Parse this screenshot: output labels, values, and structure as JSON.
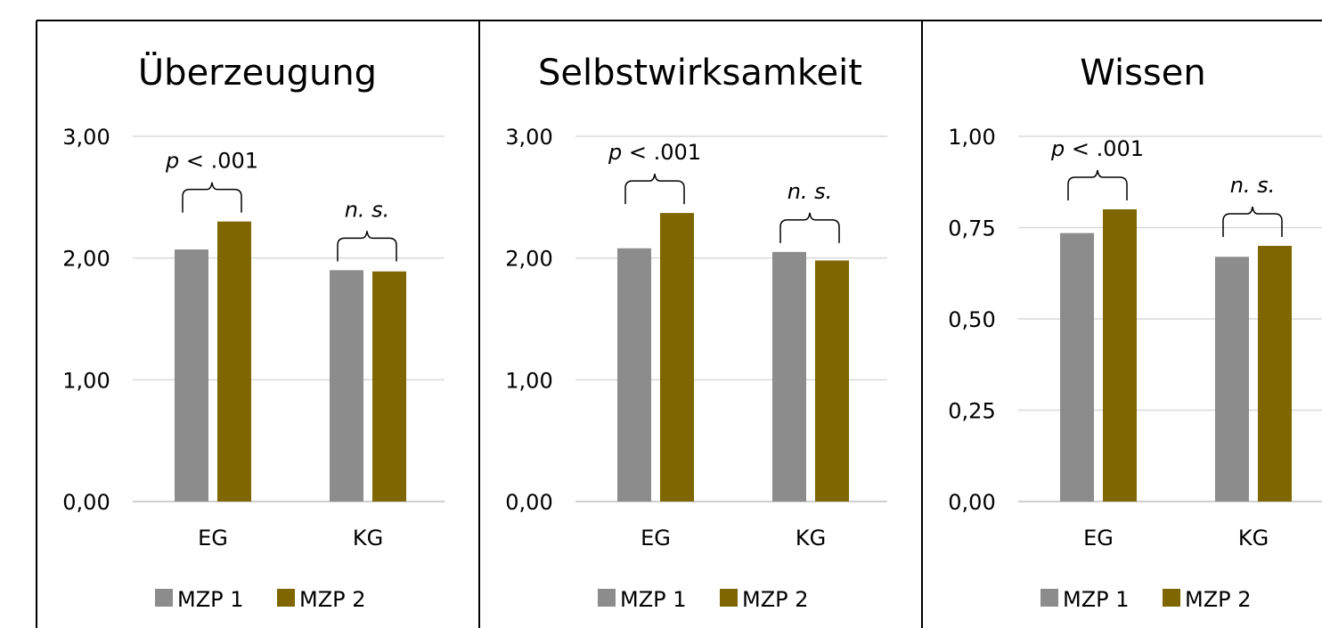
{
  "chart_data": [
    {
      "type": "bar",
      "title": "Überzeugung",
      "categories": [
        "EG",
        "KG"
      ],
      "series": [
        {
          "name": "MZP 1",
          "values": [
            2.07,
            1.9
          ]
        },
        {
          "name": "MZP 2",
          "values": [
            2.3,
            1.89
          ]
        }
      ],
      "ylim": [
        0,
        3
      ],
      "yticks": [
        "0,00",
        "1,00",
        "2,00",
        "3,00"
      ],
      "annotations": [
        {
          "category": "EG",
          "italic": "p",
          "text": " < .001"
        },
        {
          "category": "KG",
          "italic": "n. s.",
          "text": ""
        }
      ],
      "legend": "bottom",
      "grid": true
    },
    {
      "type": "bar",
      "title": "Selbstwirksamkeit",
      "categories": [
        "EG",
        "KG"
      ],
      "series": [
        {
          "name": "MZP 1",
          "values": [
            2.08,
            2.05
          ]
        },
        {
          "name": "MZP 2",
          "values": [
            2.37,
            1.98
          ]
        }
      ],
      "ylim": [
        0,
        3
      ],
      "yticks": [
        "0,00",
        "1,00",
        "2,00",
        "3,00"
      ],
      "annotations": [
        {
          "category": "EG",
          "italic": "p",
          "text": " < .001"
        },
        {
          "category": "KG",
          "italic": "n. s.",
          "text": ""
        }
      ],
      "legend": "bottom",
      "grid": true
    },
    {
      "type": "bar",
      "title": "Wissen",
      "categories": [
        "EG",
        "KG"
      ],
      "series": [
        {
          "name": "MZP 1",
          "values": [
            0.735,
            0.67
          ]
        },
        {
          "name": "MZP 2",
          "values": [
            0.8,
            0.7
          ]
        }
      ],
      "ylim": [
        0,
        1
      ],
      "yticks": [
        "0,00",
        "0,25",
        "0,50",
        "0,75",
        "1,00"
      ],
      "annotations": [
        {
          "category": "EG",
          "italic": "p",
          "text": " < .001"
        },
        {
          "category": "KG",
          "italic": "n. s.",
          "text": ""
        }
      ],
      "legend": "bottom",
      "grid": true
    }
  ],
  "colors": {
    "mzp1": "#8c8c8c",
    "mzp2": "#7f6600",
    "gridline": "#d9d9d9",
    "frame": "#000000"
  }
}
